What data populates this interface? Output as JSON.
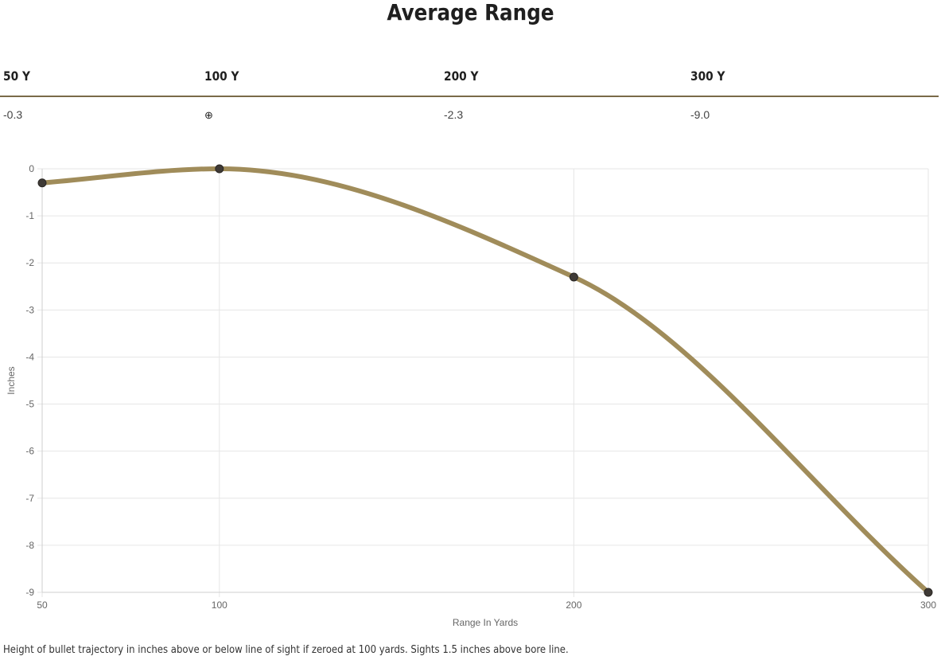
{
  "title": "Average Range",
  "table": {
    "headers": [
      "50 Y",
      "100 Y",
      "200 Y",
      "300 Y"
    ],
    "values": [
      "-0.3",
      "",
      "-2.3",
      "-9.0"
    ],
    "zero_marker_icon": "crosshair-icon",
    "zero_marker_glyph": "⊕"
  },
  "chart_data": {
    "type": "line",
    "x": [
      50,
      100,
      200,
      300
    ],
    "y": [
      -0.3,
      0,
      -2.3,
      -9.0
    ],
    "xlabel": "Range In Yards",
    "ylabel": "Inches",
    "xlim": [
      50,
      300
    ],
    "ylim": [
      -9,
      0
    ],
    "x_ticks": [
      50,
      100,
      200,
      300
    ],
    "y_ticks": [
      0,
      -1,
      -2,
      -3,
      -4,
      -5,
      -6,
      -7,
      -8,
      -9
    ],
    "grid": true,
    "line_color": "#a08c5a",
    "point_color": "#3f3a36",
    "grid_color": "#e6e6e6"
  },
  "caption": "Height of bullet trajectory in inches above or below line of sight if zeroed at 100 yards. Sights 1.5 inches above bore line."
}
